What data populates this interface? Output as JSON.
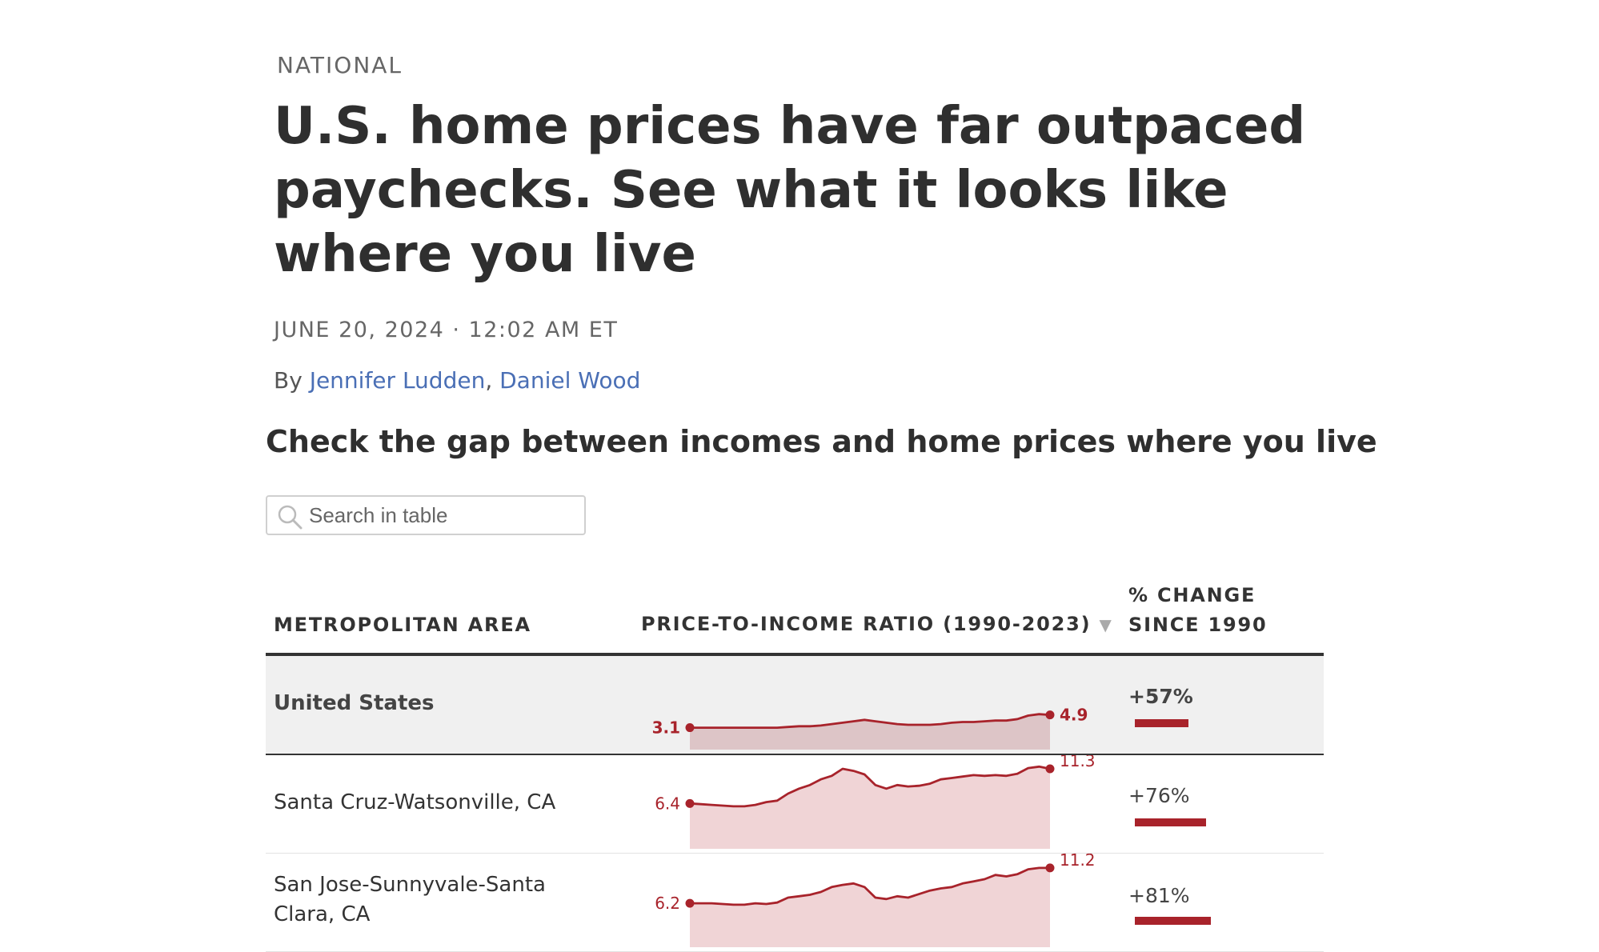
{
  "article": {
    "section": "NATIONAL",
    "headline": "U.S. home prices have far outpaced paychecks. See what it looks like where you live",
    "dateline": "JUNE 20, 2024 · 12:02 AM ET",
    "byline_prefix": "By",
    "authors": [
      "Jennifer Ludden",
      "Daniel Wood"
    ]
  },
  "chart_section": {
    "title": "Check the gap between incomes and home prices where you live"
  },
  "search": {
    "placeholder": "Search in table"
  },
  "table": {
    "headers": {
      "area": "METROPOLITAN AREA",
      "ratio": "PRICE-TO-INCOME RATIO (1990-2023)",
      "sort_icon": "▼",
      "change_line1": "% CHANGE",
      "change_line2": "SINCE 1990"
    },
    "rows": [
      {
        "name": "United States",
        "start_label": "3.1",
        "end_label": "4.9",
        "change": "+57%"
      },
      {
        "name": "Santa Cruz-Watsonville, CA",
        "start_label": "6.4",
        "end_label": "11.3",
        "change": "+76%"
      },
      {
        "name": "San Jose-Sunnyvale-Santa Clara, CA",
        "start_label": "6.2",
        "end_label": "11.2",
        "change": "+81%"
      }
    ]
  },
  "chart_data": {
    "type": "area",
    "title": "PRICE-TO-INCOME RATIO (1990-2023)",
    "x": [
      1990,
      1991,
      1992,
      1993,
      1994,
      1995,
      1996,
      1997,
      1998,
      1999,
      2000,
      2001,
      2002,
      2003,
      2004,
      2005,
      2006,
      2007,
      2008,
      2009,
      2010,
      2011,
      2012,
      2013,
      2014,
      2015,
      2016,
      2017,
      2018,
      2019,
      2020,
      2021,
      2022,
      2023
    ],
    "series": [
      {
        "name": "United States",
        "values": [
          3.1,
          3.1,
          3.1,
          3.1,
          3.1,
          3.1,
          3.1,
          3.1,
          3.1,
          3.2,
          3.3,
          3.3,
          3.4,
          3.6,
          3.8,
          4.0,
          4.2,
          4.0,
          3.8,
          3.6,
          3.5,
          3.5,
          3.5,
          3.6,
          3.8,
          3.9,
          3.9,
          4.0,
          4.1,
          4.1,
          4.3,
          4.8,
          5.0,
          4.9
        ]
      },
      {
        "name": "Santa Cruz-Watsonville, CA",
        "values": [
          6.4,
          6.3,
          6.2,
          6.1,
          6.0,
          6.0,
          6.2,
          6.6,
          6.8,
          7.8,
          8.5,
          9.0,
          9.8,
          10.3,
          11.3,
          11.0,
          10.5,
          9.0,
          8.5,
          9.0,
          8.8,
          8.9,
          9.2,
          9.8,
          10.0,
          10.2,
          10.4,
          10.3,
          10.4,
          10.3,
          10.6,
          11.4,
          11.6,
          11.3
        ]
      },
      {
        "name": "San Jose-Sunnyvale-Santa Clara, CA",
        "values": [
          6.2,
          6.2,
          6.2,
          6.1,
          6.0,
          6.0,
          6.2,
          6.1,
          6.3,
          7.0,
          7.2,
          7.4,
          7.8,
          8.5,
          8.8,
          9.0,
          8.5,
          7.0,
          6.8,
          7.2,
          7.0,
          7.5,
          8.0,
          8.3,
          8.5,
          9.0,
          9.3,
          9.6,
          10.2,
          10.0,
          10.3,
          11.0,
          11.2,
          11.2
        ]
      }
    ],
    "change_since_1990": [
      57,
      76,
      81
    ],
    "colors": {
      "line": "#a8232b",
      "fill": "#f0d4d6",
      "fill_us": "#ddc5c7"
    }
  }
}
